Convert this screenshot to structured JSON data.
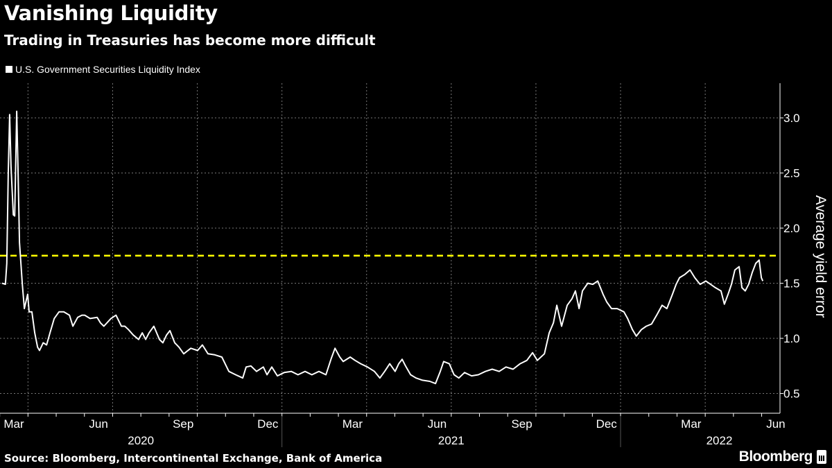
{
  "header": {
    "title": "Vanishing Liquidity",
    "subtitle": "Trading in Treasuries has become more difficult"
  },
  "footer": {
    "source": "Source: Bloomberg, Intercontinental Exchange, Bank of America",
    "logo": "Bloomberg"
  },
  "colors": {
    "line": "#ffffff",
    "threshold": "#ffff00",
    "grid": "#777777",
    "background": "#000000"
  },
  "chart_data": {
    "type": "line",
    "title": "Vanishing Liquidity",
    "subtitle": "Trading in Treasuries has become more difficult",
    "xlabel": "",
    "ylabel": "Average yield error",
    "x_unit": "months since Jan 1 2020",
    "ylim": [
      0.35,
      3.35
    ],
    "yticks": [
      0.5,
      1.0,
      1.5,
      2.0,
      2.5,
      3.0
    ],
    "ytick_labels": [
      "0.5",
      "1.0",
      "1.5",
      "2.0",
      "2.5",
      "3.0"
    ],
    "y_axis_side": "right",
    "grid": true,
    "legend_placement": "top-left",
    "xticks": [
      {
        "label": "Mar",
        "m": 2.5
      },
      {
        "label": "Jun",
        "m": 5.5
      },
      {
        "label": "Sep",
        "m": 8.5
      },
      {
        "label": "Dec",
        "m": 11.5
      },
      {
        "label": "Mar",
        "m": 14.5
      },
      {
        "label": "Jun",
        "m": 17.5
      },
      {
        "label": "Sep",
        "m": 20.5
      },
      {
        "label": "Dec",
        "m": 23.5
      },
      {
        "label": "Mar",
        "m": 26.5
      },
      {
        "label": "Jun",
        "m": 29.5
      }
    ],
    "years": [
      {
        "label": "2020",
        "m": 7
      },
      {
        "label": "2021",
        "m": 18
      },
      {
        "label": "2022",
        "m": 27.5
      }
    ],
    "reference_line": {
      "value": 1.75,
      "style": "dashed",
      "color": "#ffff00"
    },
    "series": [
      {
        "name": "U.S. Government Securities Liquidity Index",
        "points": [
          [
            2.08,
            1.5
          ],
          [
            2.2,
            1.49
          ],
          [
            2.25,
            1.68
          ],
          [
            2.3,
            2.5
          ],
          [
            2.35,
            3.03
          ],
          [
            2.4,
            2.56
          ],
          [
            2.48,
            2.12
          ],
          [
            2.53,
            2.11
          ],
          [
            2.6,
            3.06
          ],
          [
            2.65,
            2.5
          ],
          [
            2.7,
            1.87
          ],
          [
            2.8,
            1.49
          ],
          [
            2.87,
            1.27
          ],
          [
            2.99,
            1.4
          ],
          [
            3.04,
            1.24
          ],
          [
            3.14,
            1.24
          ],
          [
            3.24,
            1.05
          ],
          [
            3.34,
            0.92
          ],
          [
            3.41,
            0.89
          ],
          [
            3.54,
            0.96
          ],
          [
            3.66,
            0.94
          ],
          [
            3.78,
            1.05
          ],
          [
            3.93,
            1.18
          ],
          [
            4.1,
            1.24
          ],
          [
            4.27,
            1.24
          ],
          [
            4.47,
            1.21
          ],
          [
            4.59,
            1.11
          ],
          [
            4.76,
            1.19
          ],
          [
            4.91,
            1.21
          ],
          [
            5.01,
            1.21
          ],
          [
            5.2,
            1.18
          ],
          [
            5.45,
            1.19
          ],
          [
            5.57,
            1.14
          ],
          [
            5.69,
            1.11
          ],
          [
            5.94,
            1.18
          ],
          [
            6.12,
            1.21
          ],
          [
            6.31,
            1.11
          ],
          [
            6.43,
            1.11
          ],
          [
            6.56,
            1.08
          ],
          [
            6.73,
            1.03
          ],
          [
            6.92,
            0.99
          ],
          [
            7.05,
            1.05
          ],
          [
            7.17,
            0.99
          ],
          [
            7.29,
            1.05
          ],
          [
            7.46,
            1.11
          ],
          [
            7.66,
            0.99
          ],
          [
            7.78,
            0.96
          ],
          [
            7.91,
            1.03
          ],
          [
            8.03,
            1.07
          ],
          [
            8.2,
            0.96
          ],
          [
            8.35,
            0.92
          ],
          [
            8.52,
            0.86
          ],
          [
            8.77,
            0.91
          ],
          [
            9.01,
            0.89
          ],
          [
            9.18,
            0.94
          ],
          [
            9.38,
            0.86
          ],
          [
            9.62,
            0.85
          ],
          [
            9.87,
            0.83
          ],
          [
            10.12,
            0.7
          ],
          [
            10.36,
            0.67
          ],
          [
            10.61,
            0.64
          ],
          [
            10.73,
            0.74
          ],
          [
            10.9,
            0.75
          ],
          [
            11.1,
            0.7
          ],
          [
            11.34,
            0.74
          ],
          [
            11.47,
            0.67
          ],
          [
            11.64,
            0.74
          ],
          [
            11.84,
            0.66
          ],
          [
            12.08,
            0.69
          ],
          [
            12.33,
            0.7
          ],
          [
            12.57,
            0.67
          ],
          [
            12.82,
            0.7
          ],
          [
            13.06,
            0.67
          ],
          [
            13.31,
            0.7
          ],
          [
            13.56,
            0.67
          ],
          [
            13.75,
            0.82
          ],
          [
            13.88,
            0.91
          ],
          [
            14.05,
            0.83
          ],
          [
            14.17,
            0.79
          ],
          [
            14.42,
            0.83
          ],
          [
            14.59,
            0.8
          ],
          [
            14.79,
            0.77
          ],
          [
            15.03,
            0.74
          ],
          [
            15.28,
            0.7
          ],
          [
            15.47,
            0.64
          ],
          [
            15.64,
            0.7
          ],
          [
            15.82,
            0.77
          ],
          [
            16.01,
            0.7
          ],
          [
            16.14,
            0.77
          ],
          [
            16.26,
            0.81
          ],
          [
            16.38,
            0.75
          ],
          [
            16.56,
            0.67
          ],
          [
            16.75,
            0.64
          ],
          [
            16.98,
            0.62
          ],
          [
            17.24,
            0.61
          ],
          [
            17.44,
            0.59
          ],
          [
            17.61,
            0.7
          ],
          [
            17.73,
            0.79
          ],
          [
            17.93,
            0.77
          ],
          [
            18.1,
            0.67
          ],
          [
            18.27,
            0.64
          ],
          [
            18.47,
            0.69
          ],
          [
            18.72,
            0.66
          ],
          [
            18.96,
            0.67
          ],
          [
            19.21,
            0.7
          ],
          [
            19.45,
            0.72
          ],
          [
            19.7,
            0.7
          ],
          [
            19.94,
            0.74
          ],
          [
            20.19,
            0.72
          ],
          [
            20.44,
            0.77
          ],
          [
            20.68,
            0.8
          ],
          [
            20.88,
            0.87
          ],
          [
            21.05,
            0.8
          ],
          [
            21.3,
            0.86
          ],
          [
            21.47,
            1.05
          ],
          [
            21.62,
            1.14
          ],
          [
            21.74,
            1.3
          ],
          [
            21.91,
            1.11
          ],
          [
            22.11,
            1.3
          ],
          [
            22.28,
            1.36
          ],
          [
            22.4,
            1.43
          ],
          [
            22.53,
            1.27
          ],
          [
            22.65,
            1.43
          ],
          [
            22.84,
            1.5
          ],
          [
            23.02,
            1.49
          ],
          [
            23.19,
            1.52
          ],
          [
            23.38,
            1.4
          ],
          [
            23.51,
            1.33
          ],
          [
            23.68,
            1.27
          ],
          [
            23.88,
            1.27
          ],
          [
            24.12,
            1.24
          ],
          [
            24.25,
            1.18
          ],
          [
            24.42,
            1.08
          ],
          [
            24.56,
            1.02
          ],
          [
            24.74,
            1.08
          ],
          [
            24.91,
            1.11
          ],
          [
            25.1,
            1.13
          ],
          [
            25.3,
            1.22
          ],
          [
            25.47,
            1.3
          ],
          [
            25.64,
            1.27
          ],
          [
            25.84,
            1.4
          ],
          [
            25.97,
            1.49
          ],
          [
            26.09,
            1.55
          ],
          [
            26.28,
            1.58
          ],
          [
            26.46,
            1.62
          ],
          [
            26.63,
            1.55
          ],
          [
            26.82,
            1.49
          ],
          [
            27.02,
            1.52
          ],
          [
            27.19,
            1.49
          ],
          [
            27.36,
            1.46
          ],
          [
            27.56,
            1.43
          ],
          [
            27.68,
            1.31
          ],
          [
            27.81,
            1.4
          ],
          [
            27.93,
            1.49
          ],
          [
            28.05,
            1.62
          ],
          [
            28.2,
            1.65
          ],
          [
            28.3,
            1.46
          ],
          [
            28.42,
            1.43
          ],
          [
            28.54,
            1.49
          ],
          [
            28.67,
            1.6
          ],
          [
            28.79,
            1.68
          ],
          [
            28.91,
            1.71
          ],
          [
            28.99,
            1.55
          ],
          [
            29.04,
            1.52
          ]
        ]
      }
    ]
  }
}
